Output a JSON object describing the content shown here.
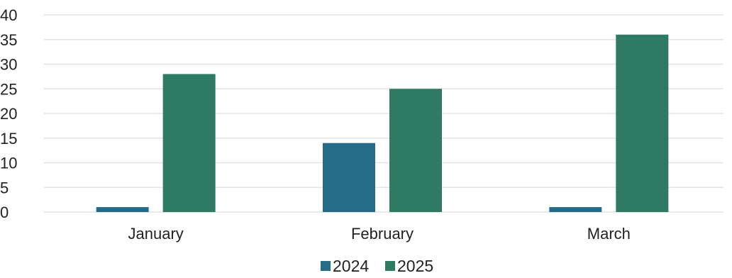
{
  "chart_data": {
    "type": "bar",
    "categories": [
      "January",
      "February",
      "March"
    ],
    "series": [
      {
        "name": "2024",
        "values": [
          1,
          14,
          1
        ],
        "color": "#246c87"
      },
      {
        "name": "2025",
        "values": [
          28,
          25,
          36
        ],
        "color": "#2e7a63"
      }
    ],
    "y_ticks": [
      "0",
      "5",
      "10",
      "15",
      "20",
      "25",
      "30",
      "35",
      "40"
    ],
    "ylim": [
      0,
      40
    ],
    "grid": true,
    "legend_position": "bottom-center",
    "title": "",
    "xlabel": "",
    "ylabel": ""
  }
}
